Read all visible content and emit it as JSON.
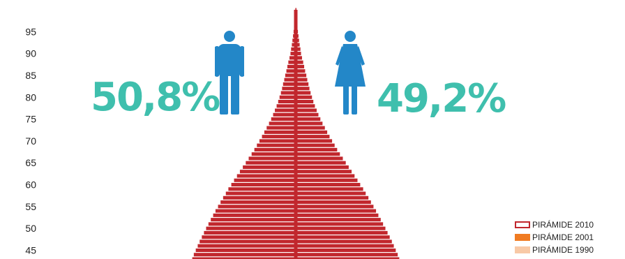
{
  "colors": {
    "bars": "#c1272d",
    "percent_text": "#3fbfad",
    "figure": "#2387c8",
    "legend_2010": "#c1272d",
    "legend_2001": "#f07b22",
    "legend_1990": "#f8c9a6"
  },
  "summary": {
    "male_percent": "50,8%",
    "female_percent": "49,2%",
    "male_icon": "male-figure-icon",
    "female_icon": "female-figure-icon"
  },
  "legend": {
    "items": [
      {
        "label": "PIRÁMIDE 2010",
        "color": "#c1272d",
        "style": "outline"
      },
      {
        "label": "PIRÁMIDE 2001",
        "color": "#f07b22",
        "style": "fill"
      },
      {
        "label": "PIRÁMIDE 1990",
        "color": "#f8c9a6",
        "style": "fill"
      }
    ]
  },
  "chart_data": {
    "type": "bar",
    "orientation": "horizontal-population-pyramid",
    "y_ticks": [
      "95",
      "90",
      "85",
      "80",
      "75",
      "70",
      "65",
      "60",
      "55",
      "50",
      "45"
    ],
    "ylim": [
      43,
      100
    ],
    "categories": [
      100,
      99,
      98,
      97,
      96,
      95,
      94,
      93,
      92,
      91,
      90,
      89,
      88,
      87,
      86,
      85,
      84,
      83,
      82,
      81,
      80,
      79,
      78,
      77,
      76,
      75,
      74,
      73,
      72,
      71,
      70,
      69,
      68,
      67,
      66,
      65,
      64,
      63,
      62,
      61,
      60,
      59,
      58,
      57,
      56,
      55,
      54,
      53,
      52,
      51,
      50,
      49,
      48,
      47,
      46,
      45,
      44,
      43
    ],
    "series": [
      {
        "name": "PIRÁMIDE 2010",
        "values": [
          0.02,
          0.03,
          0.05,
          0.07,
          0.09,
          0.11,
          0.14,
          0.17,
          0.2,
          0.24,
          0.27,
          0.32,
          0.38,
          0.43,
          0.48,
          0.54,
          0.59,
          0.65,
          0.7,
          0.76,
          0.83,
          0.9,
          0.98,
          1.07,
          1.16,
          1.26,
          1.37,
          1.49,
          1.61,
          1.73,
          1.86,
          1.99,
          2.12,
          2.26,
          2.41,
          2.56,
          2.71,
          2.86,
          3.01,
          3.16,
          3.3,
          3.45,
          3.58,
          3.72,
          3.85,
          3.98,
          4.11,
          4.23,
          4.35,
          4.47,
          4.59,
          4.7,
          4.81,
          4.92,
          5.02,
          5.12,
          5.22,
          5.3
        ]
      }
    ]
  }
}
